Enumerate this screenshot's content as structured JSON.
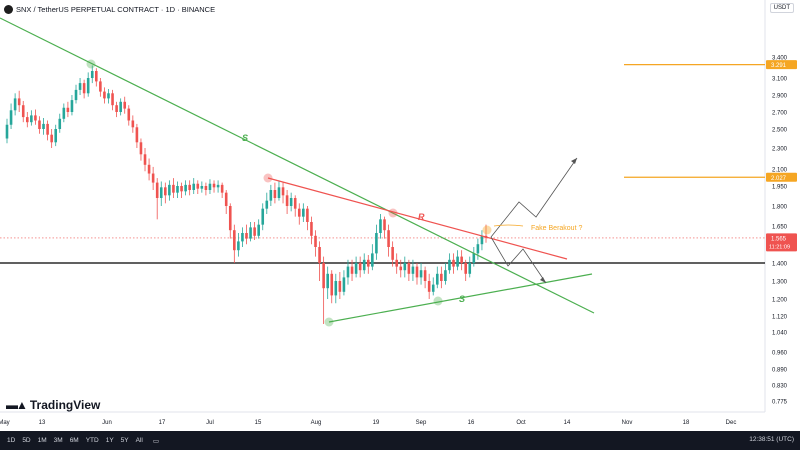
{
  "header": {
    "title": "SNX / TetherUS PERPETUAL CONTRACT · 1D · BINANCE",
    "currency": "USDT"
  },
  "brand": "TradingView",
  "timeframes": [
    "1D",
    "5D",
    "1M",
    "3M",
    "6M",
    "YTD",
    "1Y",
    "5Y",
    "All"
  ],
  "clock": "12:38:51 (UTC)",
  "colors": {
    "up": "#26a69a",
    "down": "#ef5350",
    "support": "#4caf50",
    "resistance": "#ef5350",
    "orange": "#f5a623",
    "level": "#000000"
  },
  "chart_data": {
    "type": "candlestick",
    "y_ticks": [
      "3.400",
      "3.100",
      "2.900",
      "2.700",
      "2.500",
      "2.300",
      "2.100",
      "1.950",
      "1.800",
      "1.650",
      "1.500",
      "1.400",
      "1.300",
      "1.200",
      "1.120",
      "1.040",
      "0.960",
      "0.890",
      "0.830",
      "0.775"
    ],
    "x_ticks": [
      "May",
      "13",
      "Jun",
      "17",
      "Jul",
      "15",
      "Aug",
      "19",
      "Sep",
      "16",
      "Oct",
      "14",
      "Nov",
      "18",
      "Dec"
    ],
    "price_tags": [
      {
        "label": "3.291",
        "value": 3.291,
        "color": "#f5a623"
      },
      {
        "label": "2.027",
        "value": 2.027,
        "color": "#f5a623"
      },
      {
        "label": "1.565",
        "value": 1.565,
        "color": "#ef5350",
        "sub": "11:21:09"
      }
    ],
    "horizontal_levels": [
      {
        "value": 3.291,
        "color": "#f5a623"
      },
      {
        "value": 2.027,
        "color": "#f5a623"
      },
      {
        "value": 1.4,
        "color": "#000000"
      }
    ],
    "trendline_labels": [
      "S",
      "R",
      "S"
    ],
    "annotation": "Fake Berakout ?",
    "candles": [
      [
        2.4,
        2.55,
        2.62,
        2.35
      ],
      [
        2.55,
        2.72,
        2.8,
        2.5
      ],
      [
        2.72,
        2.86,
        2.92,
        2.66
      ],
      [
        2.86,
        2.78,
        2.95,
        2.7
      ],
      [
        2.78,
        2.64,
        2.83,
        2.58
      ],
      [
        2.64,
        2.58,
        2.7,
        2.52
      ],
      [
        2.58,
        2.66,
        2.72,
        2.54
      ],
      [
        2.66,
        2.6,
        2.73,
        2.55
      ],
      [
        2.6,
        2.5,
        2.65,
        2.45
      ],
      [
        2.5,
        2.56,
        2.63,
        2.44
      ],
      [
        2.56,
        2.44,
        2.6,
        2.38
      ],
      [
        2.44,
        2.36,
        2.5,
        2.3
      ],
      [
        2.36,
        2.5,
        2.55,
        2.32
      ],
      [
        2.5,
        2.62,
        2.68,
        2.46
      ],
      [
        2.62,
        2.75,
        2.8,
        2.58
      ],
      [
        2.75,
        2.7,
        2.82,
        2.64
      ],
      [
        2.7,
        2.84,
        2.9,
        2.66
      ],
      [
        2.84,
        2.96,
        3.02,
        2.8
      ],
      [
        2.96,
        3.04,
        3.1,
        2.9
      ],
      [
        3.04,
        2.92,
        3.08,
        2.86
      ],
      [
        2.92,
        3.1,
        3.18,
        2.88
      ],
      [
        3.1,
        3.2,
        3.28,
        3.04
      ],
      [
        3.2,
        3.06,
        3.24,
        3.0
      ],
      [
        3.06,
        2.94,
        3.1,
        2.88
      ],
      [
        2.94,
        2.86,
        2.99,
        2.8
      ],
      [
        2.86,
        2.92,
        2.97,
        2.8
      ],
      [
        2.92,
        2.78,
        2.96,
        2.72
      ],
      [
        2.78,
        2.7,
        2.82,
        2.64
      ],
      [
        2.7,
        2.82,
        2.86,
        2.66
      ],
      [
        2.82,
        2.74,
        2.88,
        2.68
      ],
      [
        2.74,
        2.6,
        2.78,
        2.54
      ],
      [
        2.6,
        2.52,
        2.66,
        2.46
      ],
      [
        2.52,
        2.36,
        2.56,
        2.3
      ],
      [
        2.36,
        2.24,
        2.4,
        2.18
      ],
      [
        2.24,
        2.14,
        2.3,
        2.08
      ],
      [
        2.14,
        2.06,
        2.2,
        2.0
      ],
      [
        2.06,
        1.98,
        2.12,
        1.92
      ],
      [
        1.98,
        1.86,
        2.02,
        1.7
      ],
      [
        1.86,
        1.94,
        1.99,
        1.8
      ],
      [
        1.94,
        1.88,
        1.98,
        1.82
      ],
      [
        1.88,
        1.96,
        2.0,
        1.84
      ],
      [
        1.96,
        1.9,
        2.02,
        1.86
      ],
      [
        1.9,
        1.95,
        1.99,
        1.86
      ],
      [
        1.95,
        1.91,
        1.98,
        1.86
      ],
      [
        1.91,
        1.96,
        2.0,
        1.88
      ],
      [
        1.96,
        1.92,
        2.0,
        1.88
      ],
      [
        1.92,
        1.97,
        2.02,
        1.89
      ],
      [
        1.97,
        1.93,
        2.0,
        1.89
      ],
      [
        1.93,
        1.95,
        1.99,
        1.9
      ],
      [
        1.95,
        1.92,
        1.98,
        1.88
      ],
      [
        1.92,
        1.97,
        2.01,
        1.89
      ],
      [
        1.97,
        1.94,
        2.0,
        1.9
      ],
      [
        1.94,
        1.96,
        2.0,
        1.9
      ],
      [
        1.96,
        1.9,
        1.98,
        1.86
      ],
      [
        1.9,
        1.8,
        1.92,
        1.74
      ],
      [
        1.8,
        1.62,
        1.82,
        1.56
      ],
      [
        1.62,
        1.48,
        1.66,
        1.4
      ],
      [
        1.48,
        1.54,
        1.6,
        1.44
      ],
      [
        1.54,
        1.6,
        1.64,
        1.5
      ],
      [
        1.6,
        1.56,
        1.66,
        1.52
      ],
      [
        1.56,
        1.64,
        1.68,
        1.54
      ],
      [
        1.64,
        1.58,
        1.68,
        1.55
      ],
      [
        1.58,
        1.66,
        1.7,
        1.56
      ],
      [
        1.66,
        1.78,
        1.82,
        1.62
      ],
      [
        1.78,
        1.84,
        1.9,
        1.74
      ],
      [
        1.84,
        1.92,
        1.96,
        1.8
      ],
      [
        1.92,
        1.86,
        1.98,
        1.82
      ],
      [
        1.86,
        1.94,
        2.0,
        1.84
      ],
      [
        1.94,
        1.88,
        1.99,
        1.82
      ],
      [
        1.88,
        1.8,
        1.92,
        1.74
      ],
      [
        1.8,
        1.86,
        1.9,
        1.76
      ],
      [
        1.86,
        1.78,
        1.88,
        1.72
      ],
      [
        1.78,
        1.72,
        1.82,
        1.66
      ],
      [
        1.72,
        1.78,
        1.82,
        1.68
      ],
      [
        1.78,
        1.68,
        1.8,
        1.62
      ],
      [
        1.68,
        1.58,
        1.72,
        1.52
      ],
      [
        1.58,
        1.5,
        1.62,
        1.44
      ],
      [
        1.5,
        1.4,
        1.54,
        1.3
      ],
      [
        1.4,
        1.26,
        1.44,
        1.08
      ],
      [
        1.26,
        1.34,
        1.38,
        1.2
      ],
      [
        1.34,
        1.22,
        1.36,
        1.18
      ],
      [
        1.22,
        1.3,
        1.34,
        1.18
      ],
      [
        1.3,
        1.24,
        1.35,
        1.2
      ],
      [
        1.24,
        1.32,
        1.36,
        1.22
      ],
      [
        1.32,
        1.38,
        1.42,
        1.28
      ],
      [
        1.38,
        1.34,
        1.42,
        1.3
      ],
      [
        1.34,
        1.4,
        1.44,
        1.32
      ],
      [
        1.4,
        1.36,
        1.44,
        1.32
      ],
      [
        1.36,
        1.42,
        1.46,
        1.34
      ],
      [
        1.42,
        1.38,
        1.45,
        1.34
      ],
      [
        1.38,
        1.46,
        1.52,
        1.36
      ],
      [
        1.46,
        1.6,
        1.66,
        1.42
      ],
      [
        1.6,
        1.7,
        1.74,
        1.56
      ],
      [
        1.7,
        1.62,
        1.72,
        1.56
      ],
      [
        1.62,
        1.5,
        1.66,
        1.44
      ],
      [
        1.5,
        1.42,
        1.54,
        1.38
      ],
      [
        1.42,
        1.38,
        1.46,
        1.34
      ],
      [
        1.38,
        1.36,
        1.42,
        1.32
      ],
      [
        1.36,
        1.4,
        1.44,
        1.32
      ],
      [
        1.4,
        1.34,
        1.42,
        1.3
      ],
      [
        1.34,
        1.38,
        1.42,
        1.3
      ],
      [
        1.38,
        1.32,
        1.4,
        1.28
      ],
      [
        1.32,
        1.36,
        1.4,
        1.28
      ],
      [
        1.36,
        1.3,
        1.38,
        1.26
      ],
      [
        1.3,
        1.24,
        1.34,
        1.2
      ],
      [
        1.24,
        1.28,
        1.32,
        1.22
      ],
      [
        1.28,
        1.34,
        1.38,
        1.26
      ],
      [
        1.34,
        1.3,
        1.38,
        1.26
      ],
      [
        1.3,
        1.36,
        1.4,
        1.28
      ],
      [
        1.36,
        1.42,
        1.46,
        1.34
      ],
      [
        1.42,
        1.38,
        1.46,
        1.34
      ],
      [
        1.38,
        1.44,
        1.48,
        1.36
      ],
      [
        1.44,
        1.4,
        1.48,
        1.36
      ],
      [
        1.4,
        1.34,
        1.42,
        1.3
      ],
      [
        1.34,
        1.4,
        1.44,
        1.32
      ],
      [
        1.4,
        1.46,
        1.5,
        1.38
      ],
      [
        1.46,
        1.52,
        1.56,
        1.42
      ],
      [
        1.52,
        1.58,
        1.62,
        1.48
      ],
      [
        1.58,
        1.565,
        1.66,
        1.53
      ]
    ]
  }
}
